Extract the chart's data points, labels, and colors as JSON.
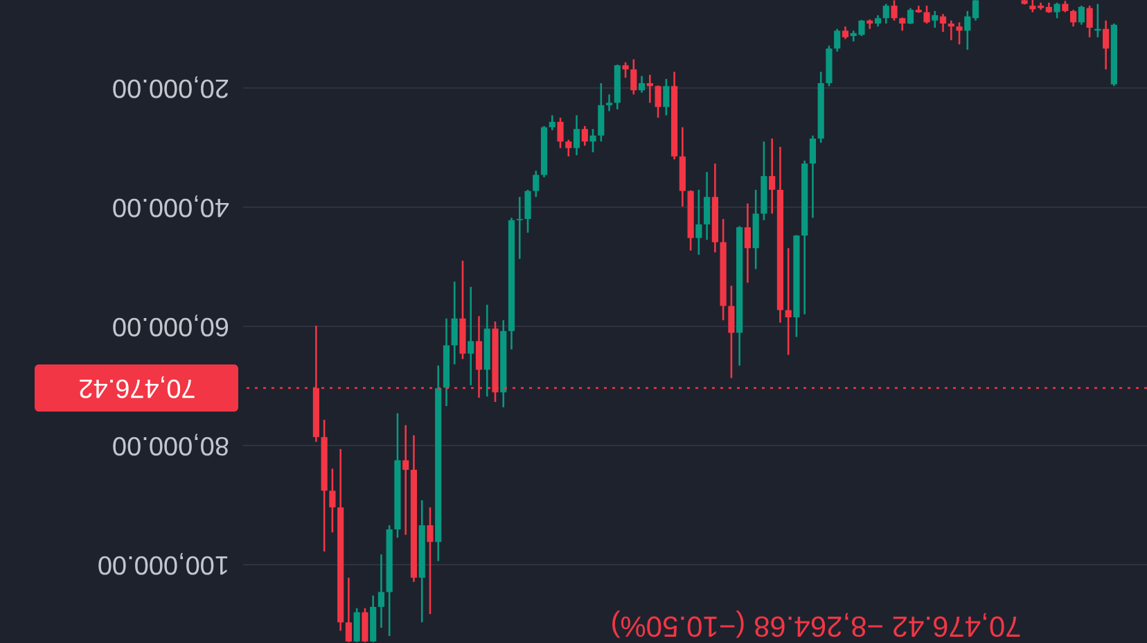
{
  "chart_data": {
    "type": "candlestick",
    "categories": [
      null,
      null,
      null,
      null,
      null,
      null,
      null,
      null,
      null,
      null,
      null,
      null,
      null,
      null,
      null,
      null,
      null,
      null,
      null,
      null,
      null,
      null,
      null,
      null,
      null,
      null,
      null,
      null,
      null,
      null,
      null,
      null,
      null,
      null,
      null,
      null,
      null,
      null,
      null,
      null,
      null,
      null,
      null,
      null,
      null,
      null,
      null,
      null,
      null,
      null,
      null,
      null,
      null,
      null,
      null,
      null,
      null,
      null,
      null,
      null,
      null,
      null,
      null,
      null,
      null,
      null,
      null,
      null,
      null,
      null,
      null,
      null,
      null,
      null,
      null,
      null,
      null,
      null,
      null,
      null,
      null,
      null,
      null,
      null,
      null,
      null,
      null,
      null,
      null,
      null,
      null,
      null,
      null,
      null,
      null,
      null,
      null,
      null,
      null
    ],
    "ohlc": [
      [
        78700,
        79500,
        60000,
        70476.42
      ],
      [
        87700,
        97900,
        75800,
        78700
      ],
      [
        90500,
        94700,
        84000,
        87700
      ],
      [
        109800,
        111200,
        80700,
        90500
      ],
      [
        113000,
        113100,
        102300,
        109800
      ],
      [
        108100,
        113100,
        107400,
        113000
      ],
      [
        113000,
        113100,
        107400,
        108100
      ],
      [
        107200,
        113100,
        105300,
        113000
      ],
      [
        104700,
        110700,
        98400,
        107200
      ],
      [
        94200,
        112100,
        93500,
        104700
      ],
      [
        82600,
        95600,
        74700,
        94200
      ],
      [
        84200,
        95100,
        76700,
        82600
      ],
      [
        102300,
        103000,
        78400,
        84200
      ],
      [
        93500,
        109800,
        89300,
        102300
      ],
      [
        96300,
        108400,
        90500,
        93500
      ],
      [
        70500,
        99500,
        66700,
        96300
      ],
      [
        63300,
        73500,
        58800,
        70400
      ],
      [
        58800,
        66500,
        52600,
        63300
      ],
      [
        64700,
        65600,
        49100,
        58800
      ],
      [
        62600,
        70000,
        53500,
        64700
      ],
      [
        67400,
        72100,
        58400,
        62600
      ],
      [
        60500,
        71900,
        56500,
        67400
      ],
      [
        71200,
        72800,
        59300,
        60500
      ],
      [
        60900,
        73700,
        59100,
        71200
      ],
      [
        42300,
        64000,
        41900,
        60900
      ],
      [
        42100,
        48800,
        38400,
        42300
      ],
      [
        37400,
        44400,
        37200,
        42100
      ],
      [
        34700,
        38400,
        34000,
        37400
      ],
      [
        26700,
        35100,
        26500,
        34700
      ],
      [
        25800,
        27200,
        24700,
        26700
      ],
      [
        29100,
        30200,
        25100,
        25800
      ],
      [
        30200,
        31600,
        28800,
        29100
      ],
      [
        27000,
        31400,
        24700,
        30200
      ],
      [
        29100,
        29800,
        26500,
        27000
      ],
      [
        28100,
        30900,
        27000,
        29100
      ],
      [
        23000,
        29100,
        19300,
        28100
      ],
      [
        22600,
        24000,
        21200,
        23000
      ],
      [
        16300,
        23700,
        16200,
        22600
      ],
      [
        17000,
        18400,
        15800,
        16300
      ],
      [
        20500,
        21200,
        15300,
        17000
      ],
      [
        19300,
        20900,
        18100,
        20500
      ],
      [
        19800,
        22600,
        17900,
        19300
      ],
      [
        23300,
        25100,
        19700,
        19800
      ],
      [
        19800,
        24700,
        18600,
        23300
      ],
      [
        31600,
        32100,
        17400,
        19800
      ],
      [
        37400,
        40000,
        26700,
        31600
      ],
      [
        45300,
        47400,
        37300,
        37400
      ],
      [
        43000,
        48100,
        37200,
        45300
      ],
      [
        38400,
        45600,
        34200,
        43000
      ],
      [
        46000,
        47700,
        32800,
        38400
      ],
      [
        56700,
        59100,
        42100,
        46000
      ],
      [
        61200,
        68800,
        53300,
        56700
      ],
      [
        43500,
        66700,
        43300,
        61200
      ],
      [
        47000,
        52800,
        39500,
        43500
      ],
      [
        41200,
        50500,
        37200,
        47000
      ],
      [
        34900,
        42300,
        29100,
        41200
      ],
      [
        37200,
        41200,
        28600,
        34900
      ],
      [
        57400,
        59500,
        30000,
        37200
      ],
      [
        58600,
        64900,
        47000,
        57400
      ],
      [
        44900,
        61900,
        44800,
        58600
      ],
      [
        32800,
        58100,
        32300,
        44900
      ],
      [
        28600,
        41900,
        28100,
        32800
      ],
      [
        19300,
        29300,
        17400,
        28600
      ],
      [
        13500,
        19800,
        13000,
        19300
      ],
      [
        10500,
        14000,
        10200,
        13500
      ],
      [
        11600,
        11900,
        9800,
        10500
      ],
      [
        10900,
        12300,
        10500,
        11400
      ],
      [
        8800,
        11400,
        8700,
        11200
      ],
      [
        9300,
        10200,
        8600,
        8800
      ],
      [
        8400,
        9800,
        7900,
        9300
      ],
      [
        6300,
        9300,
        6000,
        8400
      ],
      [
        8400,
        8800,
        5400,
        6300
      ],
      [
        9300,
        10500,
        8300,
        8400
      ],
      [
        7000,
        9400,
        6700,
        9300
      ],
      [
        7400,
        7500,
        6300,
        7000
      ],
      [
        9100,
        9300,
        6300,
        7400
      ],
      [
        7900,
        10000,
        7200,
        8800
      ],
      [
        9300,
        10700,
        7700,
        8100
      ],
      [
        9800,
        12100,
        8800,
        9300
      ],
      [
        10500,
        12800,
        9100,
        9800
      ],
      [
        8100,
        13700,
        7200,
        10500
      ],
      [
        5400,
        8800,
        5360,
        8400
      ],
      null,
      null,
      null,
      null,
      null,
      [
        6000,
        6100,
        5360,
        5400
      ],
      [
        6900,
        7400,
        5360,
        6300
      ],
      [
        6700,
        7000,
        5800,
        6300
      ],
      [
        7400,
        7500,
        5800,
        6500
      ],
      [
        6000,
        8400,
        5800,
        7400
      ],
      [
        7200,
        7400,
        5500,
        6000
      ],
      [
        9100,
        9800,
        7000,
        7200
      ],
      [
        6500,
        9500,
        6300,
        9100
      ],
      [
        10000,
        11600,
        6300,
        6700
      ],
      [
        10200,
        11600,
        6000,
        10500
      ],
      [
        13500,
        17000,
        8800,
        10200
      ],
      [
        9500,
        19800,
        9300,
        19500
      ]
    ],
    "colors": [
      "#f23645",
      "#f23645",
      "#f23645",
      "#f23645",
      "#f23645",
      "#089981",
      "#f23645",
      "#089981",
      "#089981",
      "#089981",
      "#089981",
      "#f23645",
      "#f23645",
      "#089981",
      "#f23645",
      "#089981",
      "#089981",
      "#089981",
      "#f23645",
      "#089981",
      "#f23645",
      "#089981",
      "#f23645",
      "#089981",
      "#089981",
      "#089981",
      "#089981",
      "#089981",
      "#089981",
      "#089981",
      "#f23645",
      "#f23645",
      "#089981",
      "#f23645",
      "#089981",
      "#089981",
      "#089981",
      "#089981",
      "#f23645",
      "#f23645",
      "#089981",
      "#f23645",
      "#f23645",
      "#089981",
      "#f23645",
      "#f23645",
      "#f23645",
      "#089981",
      "#089981",
      "#f23645",
      "#f23645",
      "#f23645",
      "#089981",
      "#f23645",
      "#089981",
      "#089981",
      "#f23645",
      "#f23645",
      "#f23645",
      "#089981",
      "#089981",
      "#089981",
      "#089981",
      "#089981",
      "#089981",
      "#f23645",
      "#089981",
      "#089981",
      "#f23645",
      "#089981",
      "#089981",
      "#f23645",
      "#f23645",
      "#089981",
      "#f23645",
      "#f23645",
      "#089981",
      "#f23645",
      "#f23645",
      "#f23645",
      "#089981",
      "#089981",
      null,
      null,
      null,
      null,
      null,
      "#f23645",
      "#f23645",
      "#f23645",
      "#f23645",
      "#089981",
      "#f23645",
      "#f23645",
      "#089981",
      "#f23645",
      "#089981",
      "#f23645",
      "#089981"
    ],
    "ylim": [
      113260,
      5350
    ],
    "yticks": [
      {
        "value": 20000,
        "label": "20,000.00"
      },
      {
        "value": 40000,
        "label": "40,000.00"
      },
      {
        "value": 60000,
        "label": "60,000.00"
      },
      {
        "value": 80000,
        "label": "80,000.00"
      },
      {
        "value": 100000,
        "label": "100,000.00"
      }
    ],
    "grid": "y",
    "ref_lines": [
      {
        "axis": "y",
        "value": 70476.42,
        "label": "70,476.42",
        "color": "#f23645",
        "line_style": "dotted"
      }
    ],
    "annotations": [
      "70,476.42 −8,264.68 (−10.50%)"
    ]
  }
}
